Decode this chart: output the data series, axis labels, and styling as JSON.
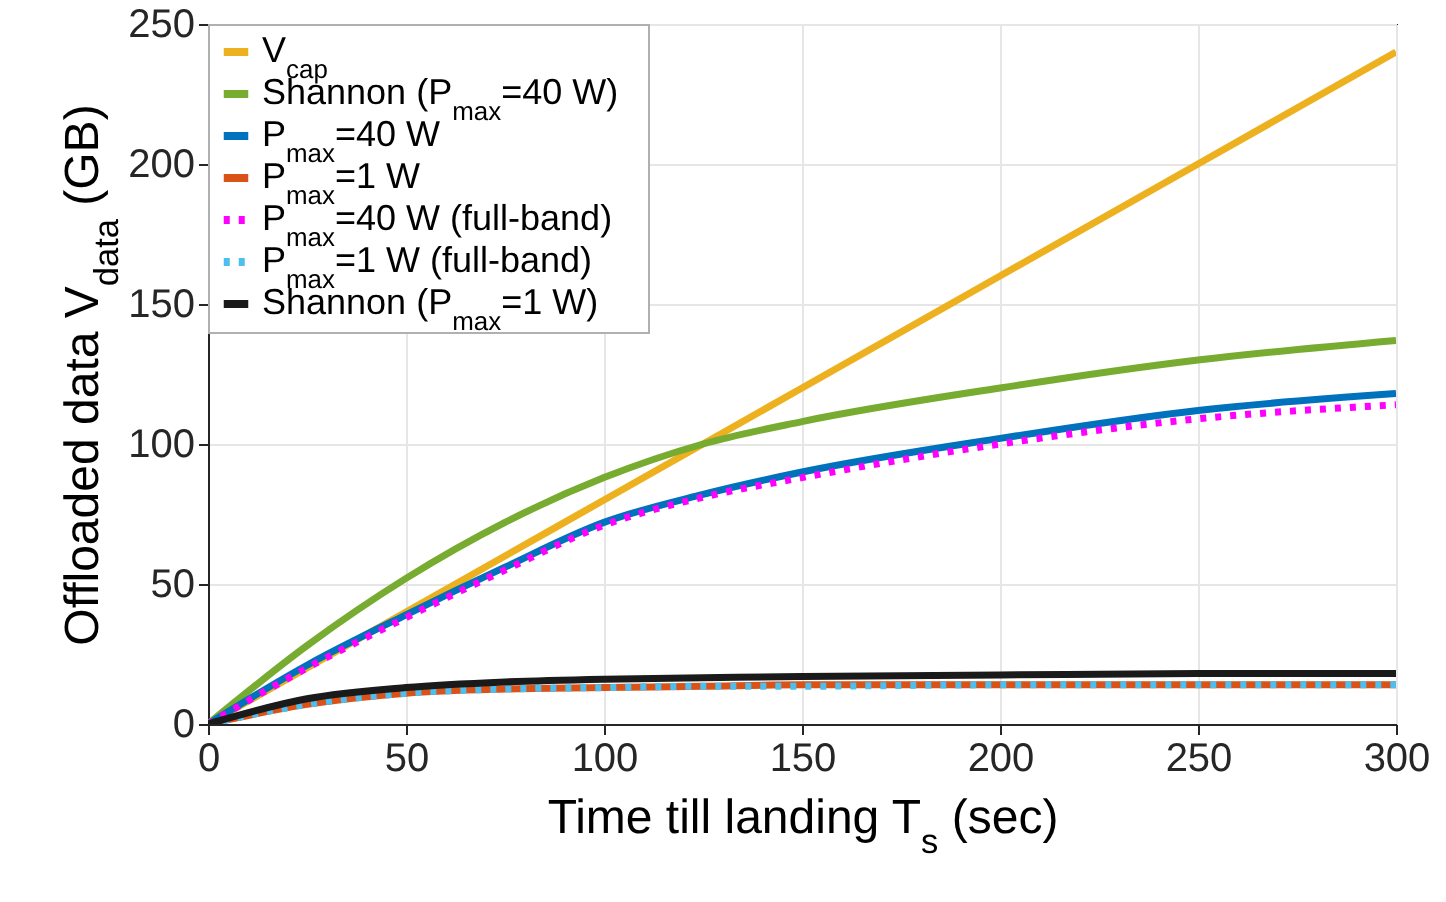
{
  "chart_data": {
    "type": "line",
    "xlabel": "Time till landing T$_{s}$ (sec)",
    "ylabel": "Offloaded data V$_{data}$ (GB)",
    "x": [
      0,
      25,
      50,
      75,
      100,
      125,
      150,
      200,
      250,
      300
    ],
    "series": [
      {
        "name": "V$_{cap}$",
        "color": "#edb120",
        "line_style": "solid",
        "values": [
          0,
          20,
          40,
          60,
          80,
          100,
          120,
          160,
          200,
          240
        ]
      },
      {
        "name": "Shannon (P$_{max}$=40 W)",
        "color": "#77ac30",
        "line_style": "solid",
        "values": [
          0,
          28,
          52,
          72,
          88,
          100,
          108,
          120,
          130,
          137
        ]
      },
      {
        "name": "P$_{max}$=40 W",
        "color": "#0072bd",
        "line_style": "solid",
        "values": [
          0,
          21,
          39,
          56,
          72,
          82,
          90,
          102,
          112,
          118
        ]
      },
      {
        "name": "P$_{max}$=1 W",
        "color": "#d95319",
        "line_style": "solid",
        "values": [
          0,
          7,
          11,
          12.5,
          13,
          13.5,
          14,
          14,
          14,
          14
        ]
      },
      {
        "name": "P$_{max}$=40 W (full-band)",
        "color": "#ff00ff",
        "line_style": "dotted",
        "values": [
          0,
          20,
          38,
          55,
          71,
          81,
          88,
          100,
          109,
          114
        ]
      },
      {
        "name": "P$_{max}$=1 W (full-band)",
        "color": "#4dbeee",
        "line_style": "dotted",
        "values": [
          0,
          7,
          11,
          12.5,
          13,
          13.5,
          13.5,
          14,
          14,
          14
        ]
      },
      {
        "name": "Shannon (P$_{max}$=1 W)",
        "color": "#1a1a1a",
        "line_style": "solid",
        "values": [
          0,
          9,
          13,
          15,
          16,
          16.5,
          17,
          17.5,
          18,
          18
        ]
      }
    ],
    "xlim": [
      0,
      300
    ],
    "xticks": [
      0,
      50,
      100,
      150,
      200,
      250,
      300
    ],
    "ylim": [
      0,
      250
    ],
    "yticks": [
      0,
      50,
      100,
      150,
      200,
      250
    ],
    "grid": true,
    "legend": "top left"
  }
}
